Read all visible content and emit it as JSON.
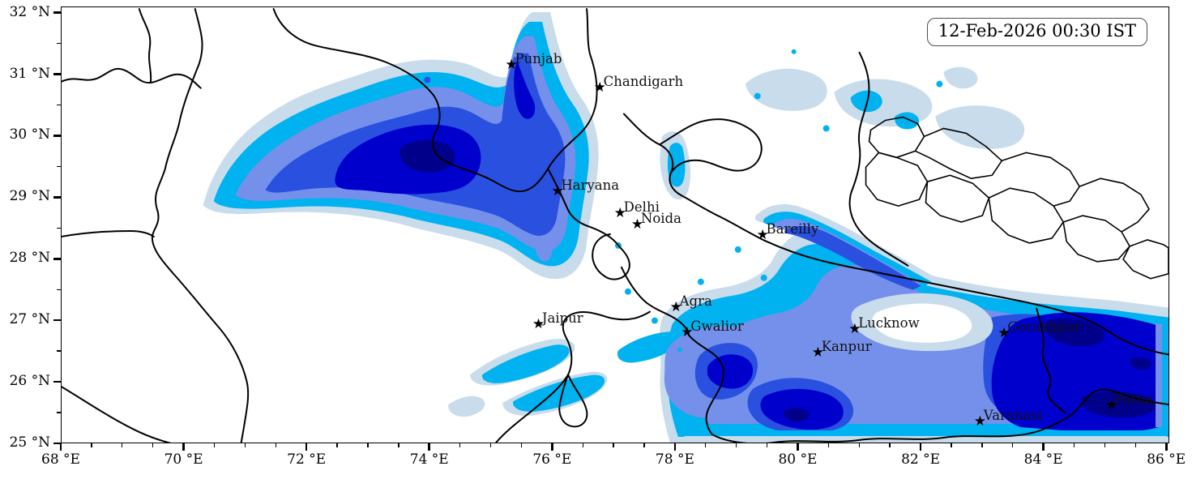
{
  "timestamp": "12-Feb-2026 00:30 IST",
  "map": {
    "extent": {
      "lon_min": 68,
      "lon_max": 86.05,
      "lat_min": 25,
      "lat_max": 32.1
    },
    "marker_glyph": "★",
    "fog_palette": [
      "#c8dcec",
      "#00b2f0",
      "#7590ea",
      "#2a50e0",
      "#0000cd",
      "#00008b"
    ],
    "boundary_color": "#000000",
    "cities": [
      {
        "name": "Punjab",
        "lon": 75.33,
        "lat": 31.13
      },
      {
        "name": "Chandigarh",
        "lon": 76.77,
        "lat": 30.76
      },
      {
        "name": "Haryana",
        "lon": 76.08,
        "lat": 29.07
      },
      {
        "name": "Delhi",
        "lon": 77.1,
        "lat": 28.72
      },
      {
        "name": "Noida",
        "lon": 77.38,
        "lat": 28.53
      },
      {
        "name": "Bareilly",
        "lon": 79.42,
        "lat": 28.36
      },
      {
        "name": "Agra",
        "lon": 78.01,
        "lat": 27.19
      },
      {
        "name": "Jaipur",
        "lon": 75.77,
        "lat": 26.91
      },
      {
        "name": "Gwalior",
        "lon": 78.19,
        "lat": 26.78
      },
      {
        "name": "Lucknow",
        "lon": 80.92,
        "lat": 26.83
      },
      {
        "name": "Kanpur",
        "lon": 80.32,
        "lat": 26.45
      },
      {
        "name": "Gorakhpur",
        "lon": 83.35,
        "lat": 26.77
      },
      {
        "name": "Varanasi",
        "lon": 82.96,
        "lat": 25.33
      },
      {
        "name": "Patna",
        "lon": 85.1,
        "lat": 25.59
      }
    ]
  },
  "axes": {
    "x_ticks": [
      {
        "lon": 68,
        "label": "68 °E"
      },
      {
        "lon": 70,
        "label": "70 °E"
      },
      {
        "lon": 72,
        "label": "72 °E"
      },
      {
        "lon": 74,
        "label": "74 °E"
      },
      {
        "lon": 76,
        "label": "76 °E"
      },
      {
        "lon": 78,
        "label": "78 °E"
      },
      {
        "lon": 80,
        "label": "80 °E"
      },
      {
        "lon": 82,
        "label": "82 °E"
      },
      {
        "lon": 84,
        "label": "84 °E"
      },
      {
        "lon": 86,
        "label": "86 °E"
      }
    ],
    "y_ticks": [
      {
        "lat": 25,
        "label": "25 °N"
      },
      {
        "lat": 26,
        "label": "26 °N"
      },
      {
        "lat": 27,
        "label": "27 °N"
      },
      {
        "lat": 28,
        "label": "28 °N"
      },
      {
        "lat": 29,
        "label": "29 °N"
      },
      {
        "lat": 30,
        "label": "30 °N"
      },
      {
        "lat": 31,
        "label": "31 °N"
      },
      {
        "lat": 32,
        "label": "32 °N"
      }
    ],
    "minor_step": 0.5
  }
}
